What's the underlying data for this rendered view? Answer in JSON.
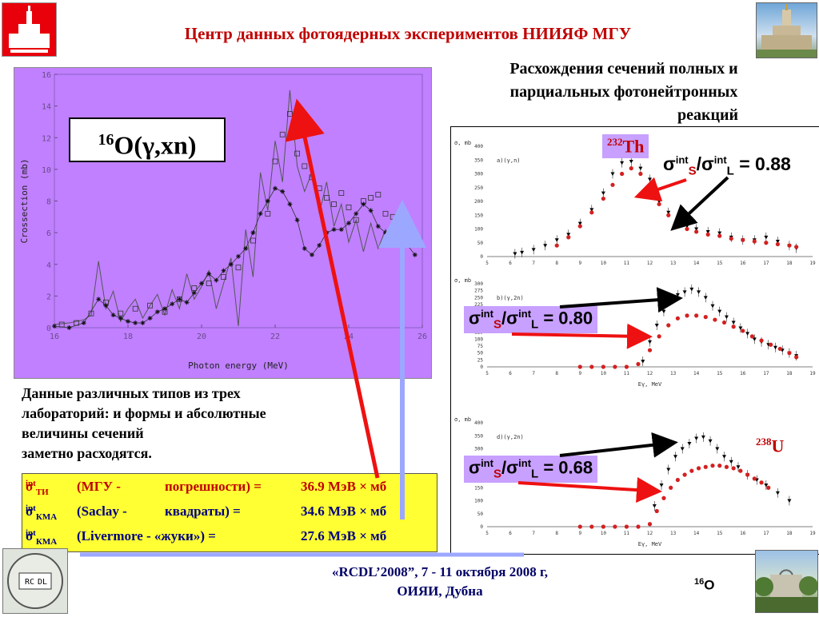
{
  "header": {
    "title": "Центр данных фотоядерных экспериментов НИИЯФ МГУ"
  },
  "right_title": {
    "line1": "Расхождения сечений полных и",
    "line2": "парциальных фотонейтронных",
    "line3": "реакций"
  },
  "left_chart_label": {
    "mass": "16",
    "rest": "O(γ,xn)"
  },
  "body_text": [
    "Данные различных типов из трех",
    "лабораторий: и формы и абсолютные",
    "величины сечений",
    "заметно расходятся."
  ],
  "integrals": [
    {
      "sym": "σ",
      "sup": "int",
      "sub": "ТИ",
      "lab": "(МГУ -",
      "note": "погрешности) =",
      "value": "36.9 МэВ × мб"
    },
    {
      "sym": "σ",
      "sup": "int",
      "sub": "КМА",
      "lab": "(Saclay -",
      "note": "квадраты)  =",
      "value": "34.6 МэВ × мб"
    },
    {
      "sym": "σ",
      "sup": "int",
      "sub": "КМА",
      "lab": "(Livermore - «жуки»)  =",
      "note": "",
      "value": "27.6  МэВ × мб"
    }
  ],
  "ratios": [
    {
      "sym": "σ",
      "sup": "int",
      "sub_s": "S",
      "sub_l": "L",
      "text": " = 0.88"
    },
    {
      "sym": "σ",
      "sup": "int",
      "sub_s": "S",
      "sub_l": "L",
      "text": " = 0.80"
    },
    {
      "sym": "σ",
      "sup": "int",
      "sub_s": "S",
      "sub_l": "L",
      "text": " = 0.68"
    }
  ],
  "elements": [
    {
      "mass": "232",
      "symbol": "Th"
    },
    {
      "mass": "238",
      "symbol": "U"
    }
  ],
  "footer": {
    "line1": "«RCDL’2008”,  7 - 11 октября 2008 г,",
    "line2": "ОИЯИ, Дубна"
  },
  "nucleus_tag": {
    "mass": "16",
    "symbol": "O"
  },
  "logo_text": {
    "left": "RC",
    "right": "DL"
  },
  "colors": {
    "title_red": "#c00000",
    "panel_purple": "#c080ff",
    "highlight_yellow": "#ffff33",
    "arrow_red": "#ee1111",
    "arrow_blue": "#9ca8ff"
  },
  "chart_data": [
    {
      "type": "line",
      "xlabel": "Photon energy (MeV)",
      "ylabel": "Crossection (mb)",
      "xlim": [
        16,
        26
      ],
      "ylim": [
        0,
        16
      ],
      "xticks": [
        16,
        18,
        20,
        22,
        24,
        26
      ],
      "yticks": [
        0,
        2,
        4,
        6,
        8,
        10,
        12,
        14,
        16
      ],
      "series": [
        {
          "style": "line",
          "x": [
            16,
            16.4,
            16.8,
            17.0,
            17.2,
            17.4,
            17.6,
            17.8,
            18.0,
            18.2,
            18.4,
            18.6,
            18.8,
            19.0,
            19.2,
            19.4,
            19.6,
            19.8,
            20.0,
            20.2,
            20.4,
            20.6,
            20.8,
            21.0,
            21.2,
            21.4,
            21.6,
            21.8,
            22.0,
            22.2,
            22.4,
            22.6,
            22.8,
            23.0,
            23.2,
            23.4,
            23.6,
            23.8,
            24.0,
            24.2,
            24.4,
            24.6,
            24.8,
            25.0,
            25.2,
            25.4
          ],
          "y": [
            0.2,
            0.3,
            0.5,
            0.8,
            4.2,
            1.2,
            2.3,
            0.4,
            1.2,
            1.8,
            0.6,
            1.4,
            2.1,
            0.8,
            2.4,
            1.2,
            3.4,
            1.8,
            2.6,
            3.6,
            1.2,
            2.8,
            4.4,
            0.1,
            6.2,
            3.2,
            9.8,
            7.4,
            11.8,
            9.2,
            15.0,
            10.2,
            8.6,
            9.8,
            7.2,
            9.2,
            6.4,
            7.8,
            5.4,
            6.8,
            4.8,
            6.6,
            5.0,
            6.2,
            5.4,
            6.0
          ]
        },
        {
          "style": "squares",
          "x": [
            16.2,
            16.6,
            17.0,
            17.4,
            17.8,
            18.2,
            18.6,
            19.0,
            19.4,
            19.8,
            20.2,
            20.6,
            21.0,
            21.4,
            21.8,
            22.0,
            22.2,
            22.4,
            22.6,
            22.8,
            23.0,
            23.2,
            23.4,
            23.6,
            23.8,
            24.0,
            24.2,
            24.4,
            24.6,
            24.8,
            25.0,
            25.2,
            25.4
          ],
          "y": [
            0.2,
            0.3,
            0.9,
            1.6,
            0.9,
            1.2,
            1.4,
            1.0,
            1.8,
            2.5,
            2.8,
            3.2,
            3.8,
            5.5,
            7.2,
            10.5,
            12.2,
            13.5,
            11.0,
            10.2,
            9.5,
            8.8,
            8.2,
            7.8,
            8.5,
            7.6,
            6.8,
            8.0,
            8.2,
            8.4,
            7.2,
            7.0,
            6.8
          ]
        },
        {
          "style": "stars",
          "x": [
            16.0,
            16.4,
            16.8,
            17.2,
            17.4,
            17.6,
            17.8,
            18.0,
            18.2,
            18.4,
            18.6,
            18.8,
            19.0,
            19.2,
            19.4,
            19.6,
            19.8,
            20.0,
            20.2,
            20.4,
            20.6,
            20.8,
            21.0,
            21.2,
            21.4,
            21.6,
            21.8,
            22.0,
            22.2,
            22.4,
            22.6,
            22.8,
            23.0,
            23.2,
            23.4,
            23.6,
            23.8,
            24.0,
            24.2,
            24.4,
            24.6,
            24.8,
            25.0,
            25.2,
            25.4,
            25.8
          ],
          "y": [
            0.1,
            0.0,
            0.3,
            1.8,
            1.4,
            0.8,
            0.6,
            0.4,
            0.3,
            0.3,
            0.6,
            1.0,
            1.2,
            1.5,
            1.8,
            1.6,
            2.2,
            2.8,
            3.4,
            3.0,
            3.6,
            4.0,
            4.5,
            5.0,
            6.0,
            7.2,
            8.0,
            8.8,
            8.6,
            7.8,
            6.8,
            5.0,
            4.6,
            5.2,
            6.0,
            6.2,
            6.2,
            6.6,
            7.2,
            7.8,
            7.4,
            6.4,
            6.0,
            6.0,
            5.8,
            4.6
          ]
        }
      ]
    },
    {
      "type": "scatter",
      "title": "a)(γ,n)",
      "xlabel": "",
      "ylabel": "σ, mb",
      "xlim": [
        5,
        19
      ],
      "ylim": [
        0,
        400
      ],
      "xticks": [
        5,
        6,
        7,
        8,
        9,
        10,
        11,
        12,
        13,
        14,
        15,
        16,
        17,
        18,
        19
      ],
      "yticks": [
        0,
        50,
        100,
        150,
        200,
        250,
        300,
        350,
        400
      ],
      "series": [
        {
          "style": "triangles",
          "x": [
            6.2,
            6.5,
            7.0,
            7.5,
            8.0,
            8.5,
            9.0,
            9.5,
            10.0,
            10.4,
            10.8,
            11.2,
            11.6,
            12.0,
            12.4,
            12.8,
            13.2,
            13.6,
            14.0,
            14.5,
            15.0,
            15.5,
            16.0,
            16.5,
            17.0,
            17.5,
            18.0,
            18.3
          ],
          "y": [
            10,
            15,
            25,
            40,
            60,
            80,
            120,
            170,
            230,
            300,
            340,
            345,
            320,
            280,
            200,
            160,
            130,
            110,
            100,
            90,
            85,
            70,
            60,
            60,
            70,
            55,
            40,
            30
          ]
        },
        {
          "style": "red-dots",
          "x": [
            8.0,
            8.5,
            9.0,
            9.5,
            10.0,
            10.4,
            10.8,
            11.2,
            11.6,
            12.0,
            12.4,
            12.8,
            13.2,
            13.6,
            14.0,
            14.5,
            15.0,
            15.5,
            16.0,
            16.5,
            17.0,
            17.5,
            18.0,
            18.3
          ],
          "y": [
            40,
            70,
            110,
            160,
            210,
            260,
            300,
            320,
            300,
            250,
            190,
            150,
            120,
            100,
            90,
            80,
            75,
            65,
            60,
            55,
            50,
            45,
            40,
            35
          ]
        }
      ]
    },
    {
      "type": "scatter",
      "title": "b)(γ,2n)",
      "xlabel": "Eγ, MeV",
      "ylabel": "σ, mb",
      "xlim": [
        5,
        19
      ],
      "ylim": [
        0,
        300
      ],
      "xticks": [
        5,
        6,
        7,
        8,
        9,
        10,
        11,
        12,
        13,
        14,
        15,
        16,
        17,
        18,
        19
      ],
      "yticks": [
        0,
        25,
        50,
        75,
        100,
        125,
        150,
        175,
        200,
        225,
        250,
        275,
        300
      ],
      "series": [
        {
          "style": "triangles",
          "x": [
            11.7,
            12.0,
            12.3,
            12.6,
            12.9,
            13.2,
            13.5,
            13.8,
            14.1,
            14.4,
            14.7,
            15.0,
            15.3,
            15.6,
            15.9,
            16.2,
            16.5,
            16.8,
            17.1,
            17.4,
            17.7,
            18.0,
            18.3
          ],
          "y": [
            20,
            90,
            150,
            200,
            240,
            260,
            270,
            280,
            270,
            250,
            220,
            200,
            180,
            160,
            140,
            120,
            100,
            90,
            80,
            70,
            60,
            50,
            40
          ]
        },
        {
          "style": "red-dots",
          "x": [
            9.0,
            9.5,
            10.0,
            10.5,
            11.0,
            11.5,
            12.0,
            12.4,
            12.8,
            13.2,
            13.6,
            14.0,
            14.4,
            14.8,
            15.2,
            15.6,
            16.0,
            16.4,
            16.8,
            17.2,
            17.6,
            18.0,
            18.3
          ],
          "y": [
            0,
            0,
            0,
            0,
            0,
            10,
            60,
            110,
            150,
            175,
            185,
            185,
            180,
            170,
            160,
            145,
            130,
            110,
            95,
            80,
            65,
            50,
            35
          ]
        }
      ]
    },
    {
      "type": "scatter",
      "title": "d)(γ,2n)",
      "xlabel": "Eγ, MeV",
      "ylabel": "σ, mb",
      "xlim": [
        5,
        19
      ],
      "ylim": [
        0,
        400
      ],
      "xticks": [
        5,
        6,
        7,
        8,
        9,
        10,
        11,
        12,
        13,
        14,
        15,
        16,
        17,
        18,
        19
      ],
      "yticks": [
        0,
        50,
        100,
        150,
        200,
        250,
        300,
        350,
        400
      ],
      "series": [
        {
          "style": "triangles",
          "x": [
            12.2,
            12.5,
            12.8,
            13.1,
            13.4,
            13.7,
            14.0,
            14.3,
            14.6,
            14.9,
            15.2,
            15.5,
            15.8,
            16.2,
            16.6,
            17.0,
            17.5,
            18.0
          ],
          "y": [
            80,
            160,
            220,
            270,
            300,
            320,
            340,
            345,
            330,
            300,
            270,
            250,
            230,
            200,
            180,
            160,
            130,
            100
          ]
        },
        {
          "style": "red-dots",
          "x": [
            9.0,
            9.5,
            10.0,
            10.5,
            11.0,
            11.5,
            12.0,
            12.3,
            12.6,
            12.9,
            13.2,
            13.5,
            13.8,
            14.1,
            14.4,
            14.7,
            15.0,
            15.3,
            15.6,
            15.9,
            16.2,
            16.5,
            16.8,
            17.1
          ],
          "y": [
            0,
            0,
            0,
            0,
            0,
            0,
            10,
            60,
            110,
            150,
            180,
            200,
            215,
            225,
            230,
            235,
            235,
            230,
            225,
            215,
            200,
            185,
            170,
            150
          ]
        }
      ]
    }
  ]
}
